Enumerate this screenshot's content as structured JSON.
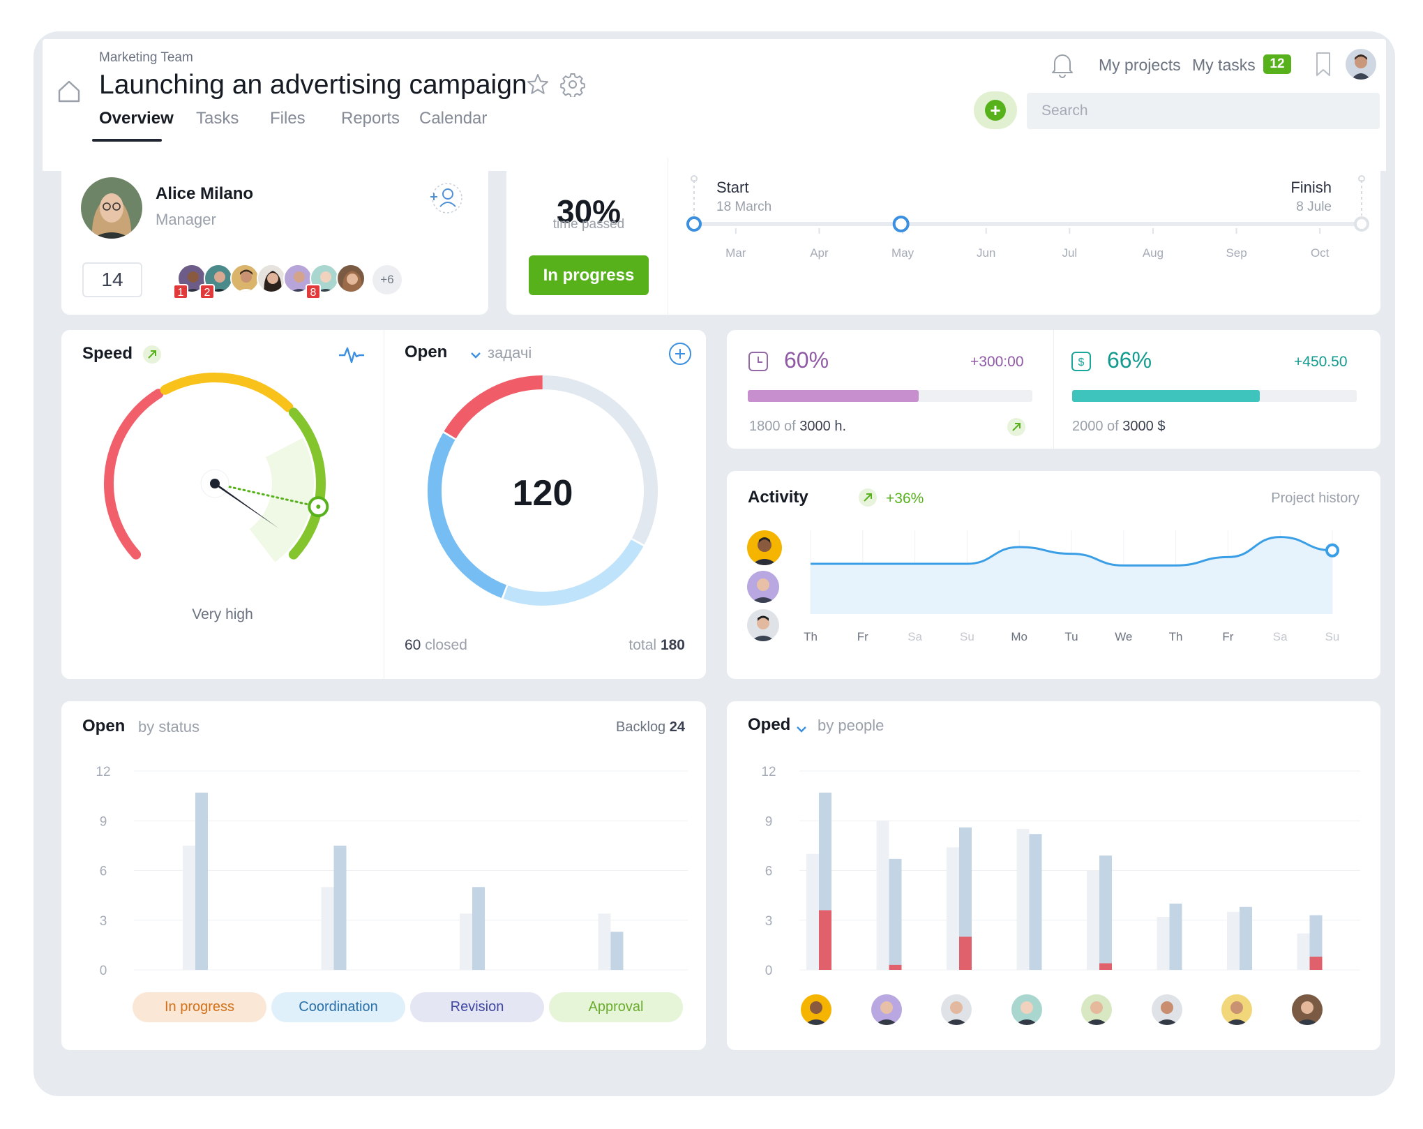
{
  "header": {
    "team": "Marketing Team",
    "title": "Launching an advertising campaign",
    "tabs": [
      "Overview",
      "Tasks",
      "Files",
      "Reports",
      "Calendar"
    ],
    "active_tab": "Overview",
    "my_projects": "My projects",
    "my_tasks": "My tasks",
    "tasks_count": "12",
    "search_placeholder": "Search",
    "icons": [
      "home-icon",
      "star-icon",
      "gear-icon",
      "bell-icon",
      "bookmark-icon",
      "add-icon"
    ]
  },
  "manager": {
    "name": "Alice Milano",
    "role": "Manager",
    "count": "14",
    "badges": [
      "1",
      "2",
      "8"
    ],
    "more": "+6"
  },
  "timeline": {
    "percent": "30%",
    "percent_label": "time passed",
    "status_button": "In progress",
    "start_label": "Start",
    "start_date": "18 March",
    "finish_label": "Finish",
    "finish_date": "8 Jule",
    "months": [
      "Mar",
      "Apr",
      "May",
      "Jun",
      "Jul",
      "Aug",
      "Sep",
      "Oct"
    ],
    "progress_fraction": 0.31
  },
  "speed": {
    "title": "Speed",
    "value_label": "Very high",
    "level_fraction": 0.88
  },
  "open_tasks": {
    "title": "Open",
    "filter": "задачі",
    "count": "120",
    "closed_value": "60",
    "closed_label": "closed",
    "total_label": "total",
    "total_value": "180"
  },
  "hours": {
    "percent": "60%",
    "delta": "+300:00",
    "used": "1800 of",
    "total": "3000 h.",
    "fraction": 0.6,
    "color": "#c88fcf"
  },
  "budget": {
    "percent": "66%",
    "delta": "+450.50",
    "used": "2000 of",
    "total": "3000 $",
    "fraction": 0.66,
    "color": "#3fc4bd"
  },
  "activity": {
    "title": "Activity",
    "delta": "+36%",
    "history_link": "Project history",
    "days": [
      "Th",
      "Fr",
      "Sa",
      "Su",
      "Mo",
      "Tu",
      "We",
      "Th",
      "Fr",
      "Sa",
      "Su"
    ],
    "values": [
      3.0,
      3.0,
      3.0,
      3.0,
      4.0,
      3.6,
      2.9,
      2.9,
      3.4,
      4.6,
      3.8
    ]
  },
  "status_chart": {
    "title": "Open",
    "subtitle": "by status",
    "backlog_label": "Backlog",
    "backlog_value": "24",
    "pills": [
      {
        "label": "In progress",
        "bg": "#fbe7d6",
        "fg": "#d3711a"
      },
      {
        "label": "Coordination",
        "bg": "#dff0fb",
        "fg": "#2a6fa8"
      },
      {
        "label": "Revision",
        "bg": "#e5e6f4",
        "fg": "#3f47a2"
      },
      {
        "label": "Approval",
        "bg": "#e6f4d8",
        "fg": "#6aab2d"
      }
    ]
  },
  "people_chart": {
    "title": "Oped",
    "subtitle": "by people"
  },
  "chart_data": [
    {
      "type": "bar",
      "title": "Open by status",
      "categories": [
        "In progress",
        "Coordination",
        "Revision",
        "Approval"
      ],
      "yticks": [
        "12",
        "9",
        "6",
        "3",
        "0"
      ],
      "ylim": [
        0,
        12
      ],
      "series": [
        {
          "values": [
            7.5,
            5.0,
            3.4,
            3.4
          ],
          "color": "#edf0f4"
        },
        {
          "values": [
            10.7,
            7.5,
            5.0,
            2.3
          ],
          "color": "#c3d4e5"
        }
      ]
    },
    {
      "type": "bar",
      "title": "Oped by people",
      "categories": [
        "1",
        "2",
        "3",
        "4",
        "5",
        "6",
        "7",
        "8"
      ],
      "yticks": [
        "12",
        "9",
        "6",
        "3",
        "0"
      ],
      "ylim": [
        0,
        12
      ],
      "series": [
        {
          "values": [
            7.0,
            9.0,
            7.4,
            8.5,
            6.0,
            3.2,
            3.5,
            2.2
          ],
          "color": "#edf0f4"
        },
        {
          "values": [
            10.7,
            6.7,
            8.6,
            8.2,
            6.9,
            4.0,
            3.8,
            3.3
          ],
          "color": "#c3d4e5"
        },
        {
          "values": [
            3.6,
            0.3,
            2.0,
            0,
            0.4,
            0,
            0,
            0.8
          ],
          "color": "#e0606b"
        }
      ]
    }
  ]
}
